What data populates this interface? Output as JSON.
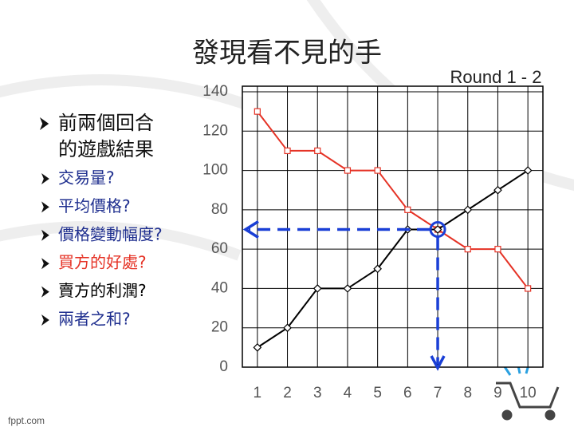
{
  "title": "發現看不見的手",
  "round": "Round 1 - 2",
  "intro": {
    "lines": [
      "前兩個回合",
      "的遊戲結果"
    ]
  },
  "questions": [
    {
      "text": "交易量?",
      "color": "#1f2f8f"
    },
    {
      "text": "平均價格?",
      "color": "#1f2f8f"
    },
    {
      "text": "價格變動幅度?",
      "color": "#1f2f8f"
    },
    {
      "text": "買方的好處?",
      "color": "#e53225"
    },
    {
      "text": "賣方的利潤?",
      "color": "#000000"
    },
    {
      "text": "兩者之和?",
      "color": "#1f2f8f"
    }
  ],
  "footer": "fppt.com",
  "chart_data": {
    "type": "line",
    "x": [
      1,
      2,
      3,
      4,
      5,
      6,
      7,
      8,
      9,
      10
    ],
    "xlim": [
      0.5,
      10.5
    ],
    "xticks": [
      1,
      2,
      3,
      4,
      5,
      6,
      7,
      8,
      9,
      10
    ],
    "ylim": [
      0,
      140
    ],
    "yticks": [
      0,
      20,
      40,
      60,
      80,
      100,
      120,
      140
    ],
    "grid": true,
    "series": [
      {
        "color": "#e53225",
        "marker": "square",
        "values": [
          130,
          110,
          110,
          100,
          100,
          80,
          70,
          60,
          60,
          40
        ]
      },
      {
        "color": "#000000",
        "marker": "diamond",
        "values": [
          10,
          20,
          40,
          40,
          50,
          70,
          70,
          80,
          90,
          100
        ]
      }
    ],
    "highlight": {
      "x": 7,
      "y": 70,
      "color": "#1a3fd6"
    }
  }
}
